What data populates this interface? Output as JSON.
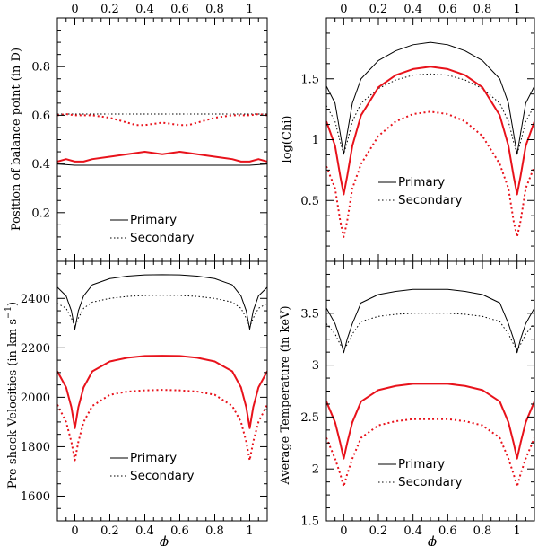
{
  "chart_data": [
    {
      "id": "balance",
      "type": "line",
      "ylabel": "Position of balance point (in D)",
      "xlabel": "",
      "xlim": [
        -0.1,
        1.1
      ],
      "ylim": [
        0,
        1
      ],
      "xticks": [
        0,
        0.2,
        0.4,
        0.6,
        0.8,
        1
      ],
      "xticklabels": [
        "0",
        "0.2",
        "0.4",
        "0.6",
        "0.8",
        "1"
      ],
      "yticks": [
        0.2,
        0.4,
        0.6,
        0.8
      ],
      "yticklabels": [
        "0.2",
        "0.4",
        "0.6",
        "0.8"
      ],
      "legend": {
        "primary": "Primary",
        "secondary": "Secondary"
      },
      "series": [
        {
          "name": "Primary (black)",
          "color": "#000000",
          "style": "solid",
          "x": [
            -0.1,
            0,
            0.1,
            0.2,
            0.3,
            0.4,
            0.5,
            0.6,
            0.7,
            0.8,
            0.9,
            1,
            1.1
          ],
          "y": [
            0.4,
            0.395,
            0.395,
            0.395,
            0.395,
            0.395,
            0.395,
            0.395,
            0.395,
            0.395,
            0.395,
            0.395,
            0.4
          ]
        },
        {
          "name": "Secondary (black)",
          "color": "#000000",
          "style": "dotted",
          "x": [
            -0.1,
            0,
            0.1,
            0.2,
            0.3,
            0.4,
            0.5,
            0.6,
            0.7,
            0.8,
            0.9,
            1,
            1.1
          ],
          "y": [
            0.605,
            0.605,
            0.605,
            0.605,
            0.605,
            0.605,
            0.605,
            0.605,
            0.605,
            0.605,
            0.605,
            0.605,
            0.605
          ]
        },
        {
          "name": "Primary (red)",
          "color": "#e8121b",
          "style": "solid",
          "x": [
            -0.1,
            -0.05,
            0,
            0.05,
            0.1,
            0.2,
            0.3,
            0.4,
            0.45,
            0.5,
            0.55,
            0.6,
            0.7,
            0.8,
            0.9,
            0.95,
            1,
            1.05,
            1.1
          ],
          "y": [
            0.41,
            0.42,
            0.41,
            0.41,
            0.42,
            0.43,
            0.44,
            0.45,
            0.445,
            0.44,
            0.445,
            0.45,
            0.44,
            0.43,
            0.42,
            0.41,
            0.41,
            0.42,
            0.41
          ]
        },
        {
          "name": "Secondary (red)",
          "color": "#e8121b",
          "style": "dotted",
          "x": [
            -0.1,
            -0.05,
            0,
            0.05,
            0.1,
            0.2,
            0.3,
            0.35,
            0.4,
            0.45,
            0.5,
            0.55,
            0.6,
            0.65,
            0.7,
            0.8,
            0.9,
            0.95,
            1,
            1.05,
            1.1
          ],
          "y": [
            0.6,
            0.605,
            0.6,
            0.6,
            0.6,
            0.59,
            0.57,
            0.56,
            0.56,
            0.565,
            0.57,
            0.565,
            0.56,
            0.56,
            0.57,
            0.59,
            0.6,
            0.6,
            0.6,
            0.605,
            0.6
          ]
        }
      ]
    },
    {
      "id": "chi",
      "type": "line",
      "ylabel": "log(Chi)",
      "xlabel": "",
      "xlim": [
        -0.1,
        1.1
      ],
      "ylim": [
        0,
        2
      ],
      "xticks": [
        0,
        0.2,
        0.4,
        0.6,
        0.8,
        1
      ],
      "xticklabels": [
        "0",
        "0.2",
        "0.4",
        "0.6",
        "0.8",
        "1"
      ],
      "yticks": [
        0.5,
        1,
        1.5
      ],
      "yticklabels": [
        "0.5",
        "1",
        "1.5"
      ],
      "legend": {
        "primary": "Primary",
        "secondary": "Secondary"
      },
      "series": [
        {
          "name": "Primary (black)",
          "color": "#000000",
          "style": "solid",
          "x": [
            -0.1,
            -0.05,
            -0.02,
            0,
            0.02,
            0.05,
            0.1,
            0.2,
            0.3,
            0.4,
            0.5,
            0.6,
            0.7,
            0.8,
            0.9,
            0.95,
            0.98,
            1,
            1.02,
            1.05,
            1.1
          ],
          "y": [
            1.44,
            1.3,
            1.05,
            0.88,
            1.05,
            1.3,
            1.5,
            1.65,
            1.73,
            1.78,
            1.8,
            1.78,
            1.73,
            1.65,
            1.5,
            1.3,
            1.05,
            0.88,
            1.05,
            1.3,
            1.44
          ]
        },
        {
          "name": "Secondary (black)",
          "color": "#000000",
          "style": "dotted",
          "x": [
            -0.1,
            -0.05,
            -0.02,
            0,
            0.02,
            0.05,
            0.1,
            0.2,
            0.3,
            0.4,
            0.5,
            0.6,
            0.7,
            0.8,
            0.9,
            0.95,
            0.98,
            1,
            1.02,
            1.05,
            1.1
          ],
          "y": [
            1.28,
            1.15,
            0.98,
            0.88,
            0.98,
            1.15,
            1.3,
            1.42,
            1.49,
            1.53,
            1.54,
            1.53,
            1.49,
            1.42,
            1.3,
            1.15,
            0.98,
            0.88,
            0.98,
            1.15,
            1.28
          ]
        },
        {
          "name": "Primary (red)",
          "color": "#e8121b",
          "style": "solid",
          "x": [
            -0.1,
            -0.05,
            -0.02,
            0,
            0.02,
            0.05,
            0.1,
            0.2,
            0.3,
            0.4,
            0.5,
            0.6,
            0.7,
            0.8,
            0.9,
            0.95,
            0.98,
            1,
            1.02,
            1.05,
            1.1
          ],
          "y": [
            1.15,
            0.95,
            0.7,
            0.55,
            0.7,
            0.95,
            1.2,
            1.43,
            1.53,
            1.58,
            1.6,
            1.58,
            1.53,
            1.43,
            1.2,
            0.95,
            0.7,
            0.55,
            0.7,
            0.95,
            1.15
          ]
        },
        {
          "name": "Secondary (red)",
          "color": "#e8121b",
          "style": "dotted",
          "x": [
            -0.1,
            -0.05,
            -0.02,
            0,
            0.02,
            0.05,
            0.1,
            0.2,
            0.3,
            0.4,
            0.5,
            0.6,
            0.7,
            0.8,
            0.9,
            0.95,
            0.98,
            1,
            1.02,
            1.05,
            1.1
          ],
          "y": [
            0.78,
            0.6,
            0.33,
            0.2,
            0.33,
            0.6,
            0.8,
            1.03,
            1.15,
            1.21,
            1.23,
            1.21,
            1.15,
            1.03,
            0.8,
            0.6,
            0.33,
            0.2,
            0.33,
            0.6,
            0.78
          ]
        }
      ]
    },
    {
      "id": "velocity",
      "type": "line",
      "ylabel": "Pre-shock Velocities (in km s",
      "ylabel_sup": "−1",
      "ylabel_end": ")",
      "xlabel": "ϕ",
      "xlim": [
        -0.1,
        1.1
      ],
      "ylim": [
        1500,
        2550
      ],
      "xticks": [
        0,
        0.2,
        0.4,
        0.6,
        0.8,
        1
      ],
      "xticklabels": [
        "0",
        "0.2",
        "0.4",
        "0.6",
        "0.8",
        "1"
      ],
      "yticks": [
        1600,
        1800,
        2000,
        2200,
        2400
      ],
      "yticklabels": [
        "1600",
        "1800",
        "2000",
        "2200",
        "2400"
      ],
      "legend": {
        "primary": "Primary",
        "secondary": "Secondary"
      },
      "series": [
        {
          "name": "Primary (black)",
          "color": "#000000",
          "style": "solid",
          "x": [
            -0.1,
            -0.05,
            -0.02,
            0,
            0.02,
            0.05,
            0.1,
            0.2,
            0.3,
            0.4,
            0.5,
            0.6,
            0.7,
            0.8,
            0.9,
            0.95,
            0.98,
            1,
            1.02,
            1.05,
            1.1
          ],
          "y": [
            2445,
            2410,
            2350,
            2275,
            2350,
            2410,
            2455,
            2480,
            2490,
            2495,
            2496,
            2495,
            2490,
            2480,
            2455,
            2410,
            2350,
            2275,
            2350,
            2410,
            2445
          ]
        },
        {
          "name": "Secondary (black)",
          "color": "#000000",
          "style": "dotted",
          "x": [
            -0.1,
            -0.05,
            -0.02,
            0,
            0.02,
            0.05,
            0.1,
            0.2,
            0.3,
            0.4,
            0.5,
            0.6,
            0.7,
            0.8,
            0.9,
            0.95,
            0.98,
            1,
            1.02,
            1.05,
            1.1
          ],
          "y": [
            2380,
            2360,
            2320,
            2285,
            2320,
            2360,
            2385,
            2400,
            2408,
            2412,
            2413,
            2412,
            2408,
            2400,
            2385,
            2360,
            2320,
            2285,
            2320,
            2360,
            2380
          ]
        },
        {
          "name": "Primary (red)",
          "color": "#e8121b",
          "style": "solid",
          "x": [
            -0.1,
            -0.05,
            -0.02,
            0,
            0.02,
            0.05,
            0.1,
            0.2,
            0.3,
            0.4,
            0.5,
            0.6,
            0.7,
            0.8,
            0.9,
            0.95,
            0.98,
            1,
            1.02,
            1.05,
            1.1
          ],
          "y": [
            2105,
            2040,
            1960,
            1875,
            1960,
            2040,
            2105,
            2145,
            2160,
            2167,
            2168,
            2167,
            2160,
            2145,
            2105,
            2040,
            1960,
            1875,
            1960,
            2040,
            2105
          ]
        },
        {
          "name": "Secondary (red)",
          "color": "#e8121b",
          "style": "dotted",
          "x": [
            -0.1,
            -0.05,
            -0.02,
            0,
            0.02,
            0.05,
            0.1,
            0.2,
            0.3,
            0.4,
            0.5,
            0.6,
            0.7,
            0.8,
            0.9,
            0.95,
            0.98,
            1,
            1.02,
            1.05,
            1.1
          ],
          "y": [
            1970,
            1900,
            1820,
            1745,
            1820,
            1900,
            1965,
            2010,
            2023,
            2028,
            2030,
            2028,
            2023,
            2010,
            1965,
            1900,
            1820,
            1745,
            1820,
            1900,
            1970
          ]
        }
      ]
    },
    {
      "id": "temperature",
      "type": "line",
      "ylabel": "Average Temperature (in keV)",
      "xlabel": "ϕ",
      "xlim": [
        -0.1,
        1.1
      ],
      "ylim": [
        1.5,
        4
      ],
      "xticks": [
        0,
        0.2,
        0.4,
        0.6,
        0.8,
        1
      ],
      "xticklabels": [
        "0",
        "0.2",
        "0.4",
        "0.6",
        "0.8",
        "1"
      ],
      "yticks": [
        1.5,
        2,
        2.5,
        3,
        3.5
      ],
      "yticklabels": [
        "1.5",
        "2",
        "2.5",
        "3",
        "3.5"
      ],
      "legend": {
        "primary": "Primary",
        "secondary": "Secondary"
      },
      "series": [
        {
          "name": "Primary (black)",
          "color": "#000000",
          "style": "solid",
          "x": [
            -0.1,
            -0.05,
            -0.02,
            0,
            0.02,
            0.05,
            0.1,
            0.2,
            0.3,
            0.4,
            0.5,
            0.6,
            0.7,
            0.8,
            0.9,
            0.95,
            0.98,
            1,
            1.02,
            1.05,
            1.1
          ],
          "y": [
            3.55,
            3.4,
            3.25,
            3.12,
            3.25,
            3.4,
            3.6,
            3.68,
            3.71,
            3.73,
            3.73,
            3.73,
            3.71,
            3.68,
            3.6,
            3.4,
            3.25,
            3.12,
            3.25,
            3.4,
            3.55
          ]
        },
        {
          "name": "Secondary (black)",
          "color": "#000000",
          "style": "dotted",
          "x": [
            -0.1,
            -0.05,
            -0.02,
            0,
            0.02,
            0.05,
            0.1,
            0.2,
            0.3,
            0.4,
            0.5,
            0.6,
            0.7,
            0.8,
            0.9,
            0.95,
            0.98,
            1,
            1.02,
            1.05,
            1.1
          ],
          "y": [
            3.4,
            3.3,
            3.2,
            3.15,
            3.2,
            3.3,
            3.42,
            3.47,
            3.49,
            3.5,
            3.5,
            3.5,
            3.49,
            3.47,
            3.42,
            3.3,
            3.2,
            3.15,
            3.2,
            3.3,
            3.4
          ]
        },
        {
          "name": "Primary (red)",
          "color": "#e8121b",
          "style": "solid",
          "x": [
            -0.1,
            -0.05,
            -0.02,
            0,
            0.02,
            0.05,
            0.1,
            0.2,
            0.3,
            0.4,
            0.5,
            0.6,
            0.7,
            0.8,
            0.9,
            0.95,
            0.98,
            1,
            1.02,
            1.05,
            1.1
          ],
          "y": [
            2.65,
            2.45,
            2.25,
            2.1,
            2.25,
            2.45,
            2.65,
            2.76,
            2.8,
            2.82,
            2.82,
            2.82,
            2.8,
            2.76,
            2.65,
            2.45,
            2.25,
            2.1,
            2.25,
            2.45,
            2.65
          ]
        },
        {
          "name": "Secondary (red)",
          "color": "#e8121b",
          "style": "dotted",
          "x": [
            -0.1,
            -0.05,
            -0.02,
            0,
            0.02,
            0.05,
            0.1,
            0.2,
            0.3,
            0.4,
            0.5,
            0.6,
            0.7,
            0.8,
            0.9,
            0.95,
            0.98,
            1,
            1.02,
            1.05,
            1.1
          ],
          "y": [
            2.3,
            2.1,
            1.95,
            1.83,
            1.95,
            2.1,
            2.3,
            2.42,
            2.46,
            2.48,
            2.48,
            2.48,
            2.46,
            2.42,
            2.3,
            2.1,
            1.95,
            1.83,
            1.95,
            2.1,
            2.3
          ]
        }
      ]
    }
  ]
}
